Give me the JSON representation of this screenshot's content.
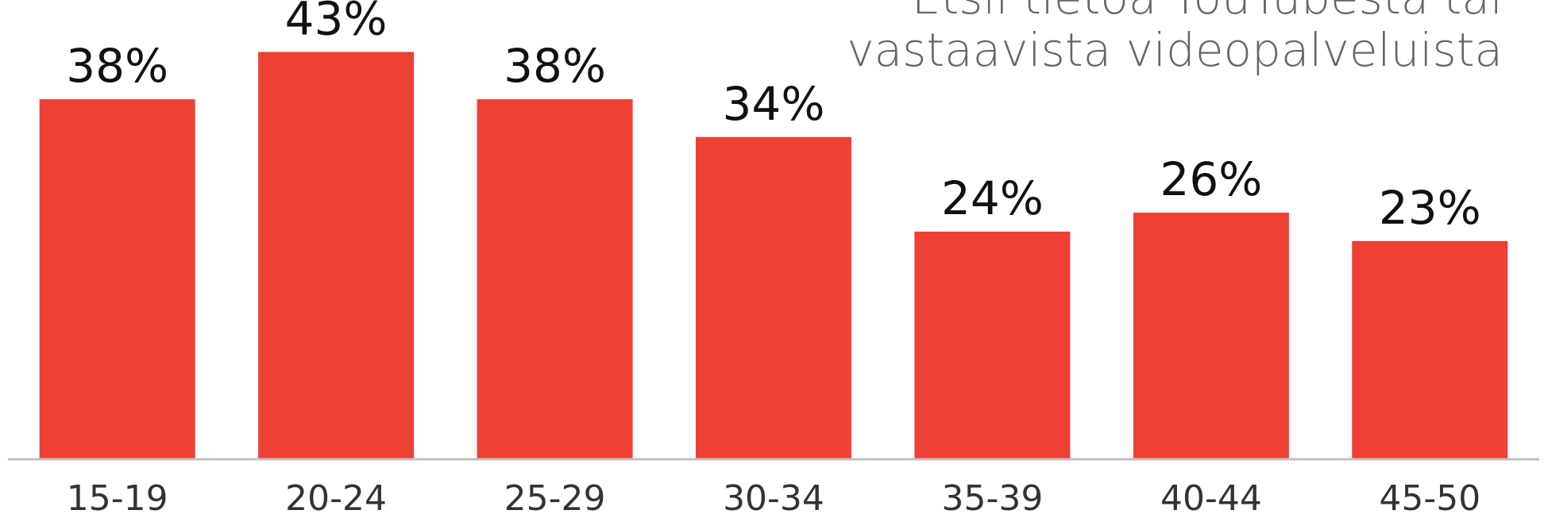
{
  "chart_data": {
    "type": "bar",
    "title": "Etsii tietoa YouTubesta tai vastaavista videopalveluista",
    "categories": [
      "15-19",
      "20-24",
      "25-29",
      "30-34",
      "35-39",
      "40-44",
      "45-50"
    ],
    "values": [
      38,
      43,
      38,
      34,
      24,
      26,
      23
    ],
    "data_labels": [
      "38%",
      "43%",
      "38%",
      "34%",
      "24%",
      "26%",
      "23%"
    ],
    "xlabel": "",
    "ylabel": "",
    "ylim": [
      0,
      48.5
    ],
    "grid": false,
    "legend": "none",
    "bar_color": "#EE4035",
    "axis_color": "#BFBFBF"
  }
}
